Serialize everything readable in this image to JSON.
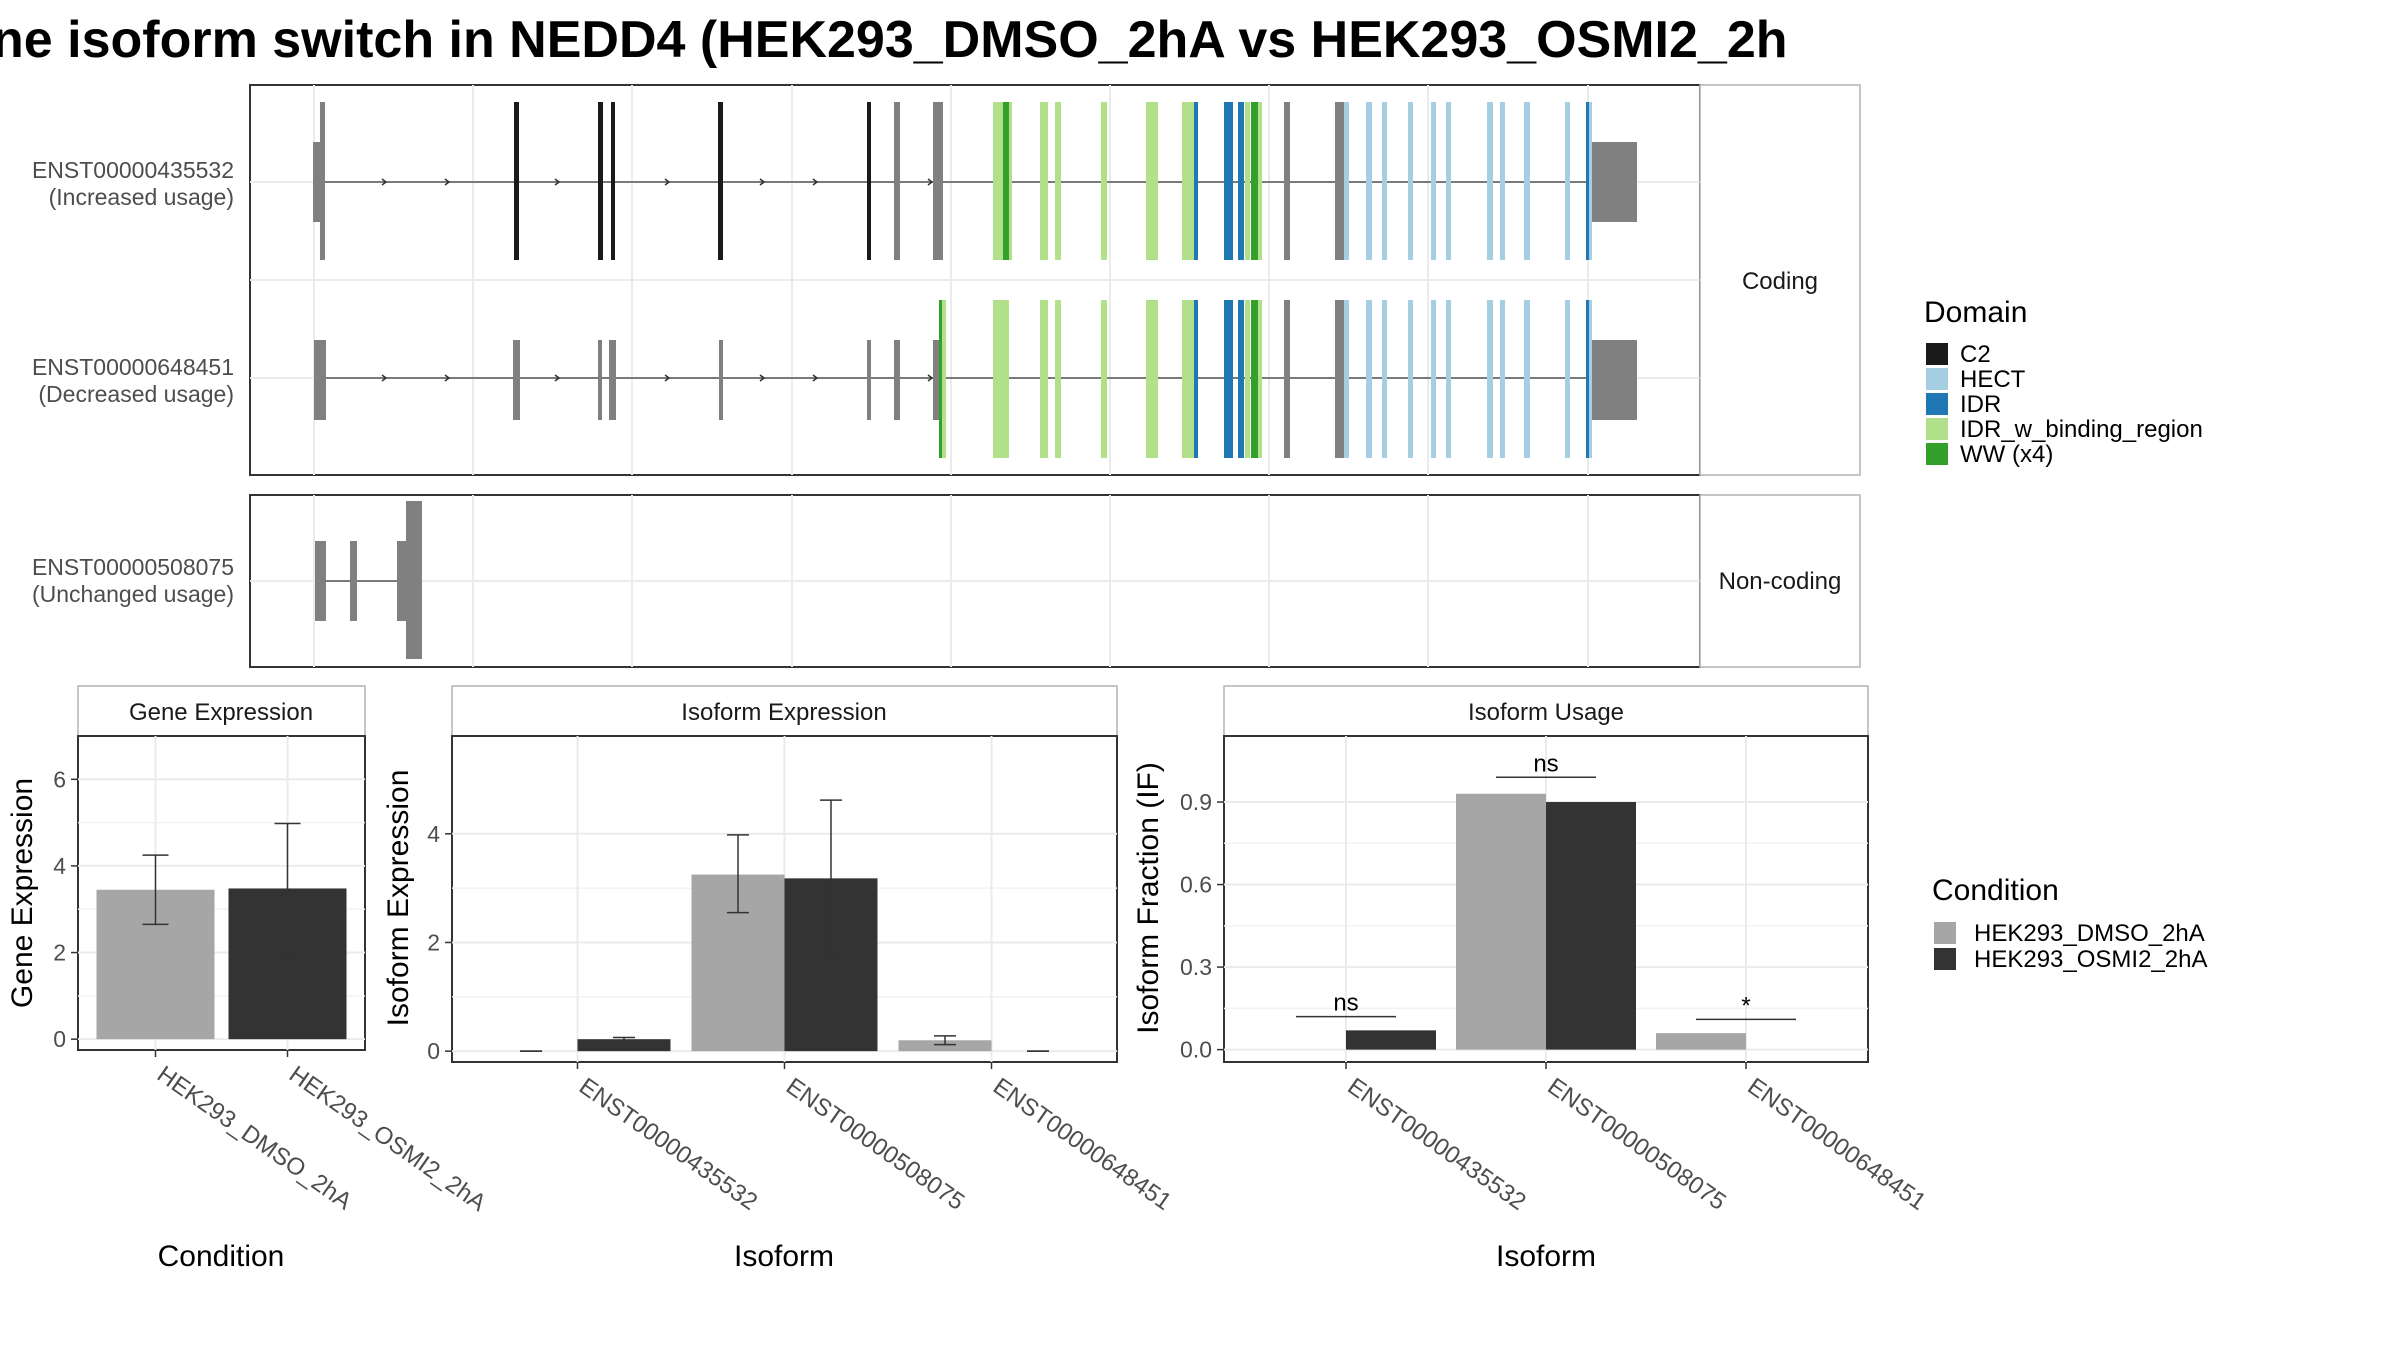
{
  "figure": {
    "title": "ne isoform switch in NEDD4 (HEK293_DMSO_2hA vs HEK293_OSMI2_2h"
  },
  "colors": {
    "C2": "#1a1a1a",
    "HECT": "#a6cee3",
    "IDR": "#1f78b4",
    "IDR_w_binding_region": "#b2df8a",
    "WW (x4)": "#33a02c",
    "exon": "#808080",
    "cond_dmso": "#a6a6a6",
    "cond_osmi": "#333333",
    "panel_border": "#333333",
    "strip_border": "#b3b3b3",
    "grid": "#ebebeb"
  },
  "structure": {
    "coding_strip": "Coding",
    "noncoding_strip": "Non-coding",
    "transcripts": [
      {
        "id": "ENST00000435532",
        "usage": "(Increased usage)"
      },
      {
        "id": "ENST00000648451",
        "usage": "(Decreased usage)"
      },
      {
        "id": "ENST00000508075",
        "usage": "(Unchanged usage)"
      }
    ]
  },
  "legends": {
    "domain": {
      "title": "Domain",
      "items": [
        {
          "label": "C2",
          "color": "#1a1a1a"
        },
        {
          "label": "HECT",
          "color": "#a6cee3"
        },
        {
          "label": "IDR",
          "color": "#1f78b4"
        },
        {
          "label": "IDR_w_binding_region",
          "color": "#b2df8a"
        },
        {
          "label": "WW (x4)",
          "color": "#33a02c"
        }
      ]
    },
    "condition": {
      "title": "Condition",
      "items": [
        {
          "label": "HEK293_DMSO_2hA",
          "color": "#a6a6a6"
        },
        {
          "label": "HEK293_OSMI2_2hA",
          "color": "#333333"
        }
      ]
    }
  },
  "chart_data": [
    {
      "type": "bar",
      "title": "Gene Expression",
      "xlabel": "Condition",
      "ylabel": "Gene Expression",
      "ylim": [
        -0.25,
        7
      ],
      "yticks": [
        0,
        2,
        4,
        6
      ],
      "categories": [
        "HEK293_DMSO_2hA",
        "HEK293_OSMI2_2hA"
      ],
      "values": [
        3.45,
        3.48
      ],
      "errors": [
        [
          2.65,
          4.25
        ],
        [
          1.98,
          4.98
        ]
      ]
    },
    {
      "type": "bar",
      "title": "Isoform Expression",
      "xlabel": "Isoform",
      "ylabel": "Isoform Expression",
      "ylim": [
        -0.2,
        5.8
      ],
      "yticks": [
        0,
        2,
        4
      ],
      "categories": [
        "ENST00000435532",
        "ENST00000508075",
        "ENST00000648451"
      ],
      "series": [
        {
          "name": "HEK293_DMSO_2hA",
          "values": [
            0.0,
            3.25,
            0.2
          ],
          "errors": [
            [
              0.0,
              0.0
            ],
            [
              2.55,
              3.98
            ],
            [
              0.12,
              0.28
            ]
          ]
        },
        {
          "name": "HEK293_OSMI2_2hA",
          "values": [
            0.22,
            3.18,
            0.0
          ],
          "errors": [
            [
              0.19,
              0.25
            ],
            [
              1.75,
              4.62
            ],
            [
              0.0,
              0.0
            ]
          ]
        }
      ]
    },
    {
      "type": "bar",
      "title": "Isoform Usage",
      "xlabel": "Isoform",
      "ylabel": "Isoform Fraction (IF)",
      "ylim": [
        -0.045,
        1.14
      ],
      "yticks": [
        0.0,
        0.3,
        0.6,
        0.9
      ],
      "ytick_labels": [
        "0.0",
        "0.3",
        "0.6",
        "0.9"
      ],
      "categories": [
        "ENST00000435532",
        "ENST00000508075",
        "ENST00000648451"
      ],
      "series": [
        {
          "name": "HEK293_DMSO_2hA",
          "values": [
            0.0,
            0.93,
            0.06
          ]
        },
        {
          "name": "HEK293_OSMI2_2hA",
          "values": [
            0.07,
            0.9,
            0.0
          ]
        }
      ],
      "significance": [
        "ns",
        "ns",
        "*"
      ],
      "significance_y": [
        0.12,
        0.99,
        0.11
      ]
    }
  ]
}
